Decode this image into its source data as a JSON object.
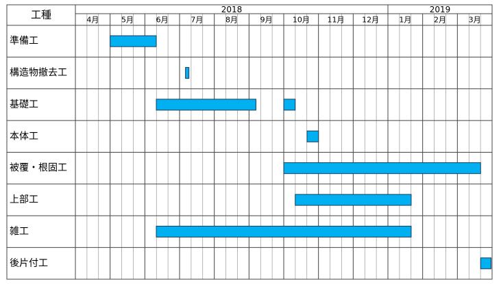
{
  "chart_data": {
    "type": "gantt",
    "row_header": "工種",
    "years": [
      {
        "label": "2018",
        "start": 0,
        "end": 9
      },
      {
        "label": "2019",
        "start": 9,
        "end": 12
      }
    ],
    "categories": [
      "4月",
      "5月",
      "6月",
      "7月",
      "8月",
      "9月",
      "10月",
      "11月",
      "12月",
      "1月",
      "2月",
      "3月"
    ],
    "xlim": [
      0,
      12
    ],
    "color": "#00b0f0",
    "tasks": [
      {
        "name": "準備工",
        "bars": [
          [
            1.0,
            2.33
          ]
        ]
      },
      {
        "name": "構造物撤去工",
        "bars": [
          [
            3.17,
            3.27
          ]
        ]
      },
      {
        "name": "基礎工",
        "bars": [
          [
            2.33,
            5.2
          ],
          [
            6.0,
            6.33
          ]
        ]
      },
      {
        "name": "本体工",
        "bars": [
          [
            6.67,
            7.0
          ]
        ]
      },
      {
        "name": "被覆・根固工",
        "bars": [
          [
            6.0,
            11.67
          ]
        ]
      },
      {
        "name": "上部工",
        "bars": [
          [
            6.33,
            9.67
          ]
        ]
      },
      {
        "name": "雑工",
        "bars": [
          [
            2.33,
            9.67
          ]
        ]
      },
      {
        "name": "後片付工",
        "bars": [
          [
            11.67,
            11.97
          ]
        ]
      }
    ]
  }
}
